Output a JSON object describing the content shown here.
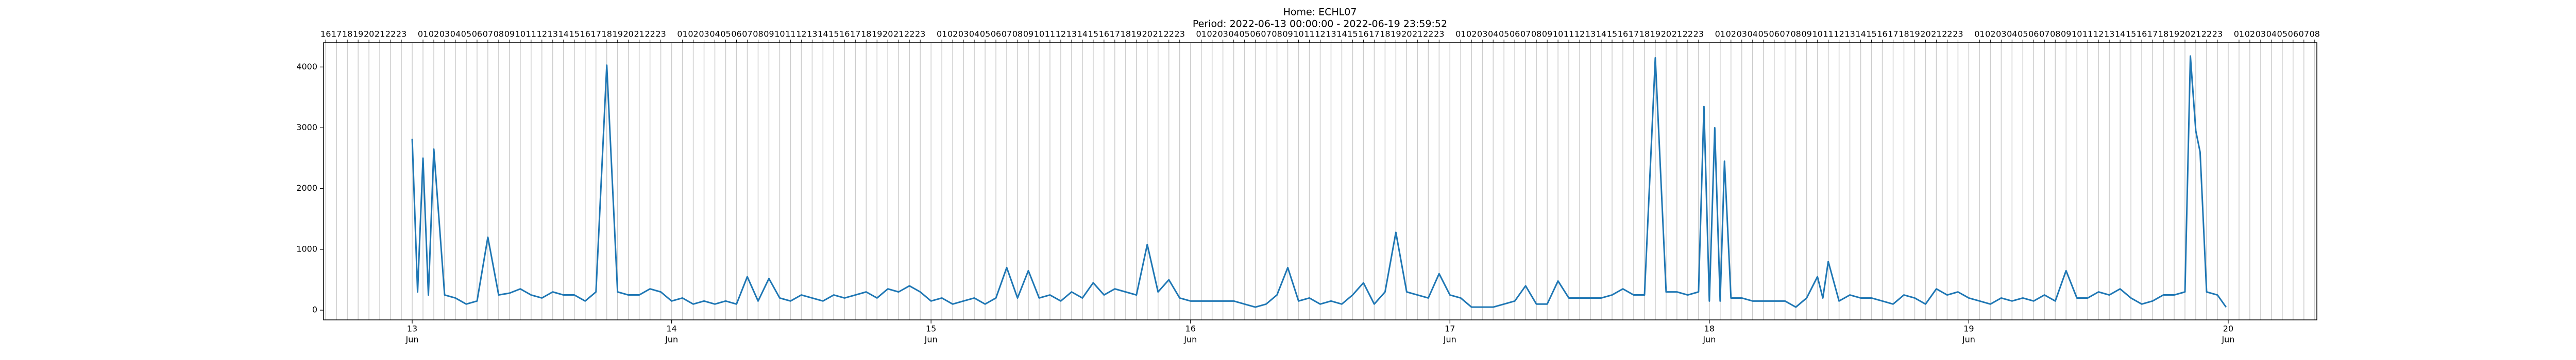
{
  "chart_data": {
    "type": "line",
    "title": "Home: ECHL07",
    "subtitle": "Period: 2022-06-13 00:00:00 - 2022-06-19 23:59:52",
    "color": "#1f77b4",
    "grid": true,
    "xlim": [
      -8.2,
      176.2
    ],
    "ylim": [
      -160,
      4400
    ],
    "yticks": [
      0,
      1000,
      2000,
      3000,
      4000
    ],
    "xticks": [
      {
        "value": 0,
        "label": "13",
        "sublabel": "Jun"
      },
      {
        "value": 24,
        "label": "14",
        "sublabel": "Jun"
      },
      {
        "value": 48,
        "label": "15",
        "sublabel": "Jun"
      },
      {
        "value": 72,
        "label": "16",
        "sublabel": "Jun"
      },
      {
        "value": 96,
        "label": "17",
        "sublabel": "Jun"
      },
      {
        "value": 120,
        "label": "18",
        "sublabel": "Jun"
      },
      {
        "value": 144,
        "label": "19",
        "sublabel": "Jun"
      },
      {
        "value": 168,
        "label": "20",
        "sublabel": "Jun"
      }
    ],
    "x2ticks": [
      {
        "value": -8,
        "label": "16"
      },
      {
        "value": -7,
        "label": "17"
      },
      {
        "value": -6,
        "label": "18"
      },
      {
        "value": -5,
        "label": "19"
      },
      {
        "value": -4,
        "label": "20"
      },
      {
        "value": -3,
        "label": "21"
      },
      {
        "value": -2,
        "label": "22"
      },
      {
        "value": -1,
        "label": "23"
      },
      {
        "value": 1,
        "label": "01"
      },
      {
        "value": 2,
        "label": "02"
      },
      {
        "value": 3,
        "label": "03"
      },
      {
        "value": 4,
        "label": "04"
      },
      {
        "value": 5,
        "label": "05"
      },
      {
        "value": 6,
        "label": "06"
      },
      {
        "value": 7,
        "label": "07"
      },
      {
        "value": 8,
        "label": "08"
      },
      {
        "value": 9,
        "label": "09"
      },
      {
        "value": 10,
        "label": "10"
      },
      {
        "value": 11,
        "label": "11"
      },
      {
        "value": 12,
        "label": "12"
      },
      {
        "value": 13,
        "label": "13"
      },
      {
        "value": 14,
        "label": "14"
      },
      {
        "value": 15,
        "label": "15"
      },
      {
        "value": 16,
        "label": "16"
      },
      {
        "value": 17,
        "label": "17"
      },
      {
        "value": 18,
        "label": "18"
      },
      {
        "value": 19,
        "label": "19"
      },
      {
        "value": 20,
        "label": "20"
      },
      {
        "value": 21,
        "label": "21"
      },
      {
        "value": 22,
        "label": "22"
      },
      {
        "value": 23,
        "label": "23"
      },
      {
        "value": 25,
        "label": "01"
      },
      {
        "value": 26,
        "label": "02"
      },
      {
        "value": 27,
        "label": "03"
      },
      {
        "value": 28,
        "label": "04"
      },
      {
        "value": 29,
        "label": "05"
      },
      {
        "value": 30,
        "label": "06"
      },
      {
        "value": 31,
        "label": "07"
      },
      {
        "value": 32,
        "label": "08"
      },
      {
        "value": 33,
        "label": "09"
      },
      {
        "value": 34,
        "label": "10"
      },
      {
        "value": 35,
        "label": "11"
      },
      {
        "value": 36,
        "label": "12"
      },
      {
        "value": 37,
        "label": "13"
      },
      {
        "value": 38,
        "label": "14"
      },
      {
        "value": 39,
        "label": "15"
      },
      {
        "value": 40,
        "label": "16"
      },
      {
        "value": 41,
        "label": "17"
      },
      {
        "value": 42,
        "label": "18"
      },
      {
        "value": 43,
        "label": "19"
      },
      {
        "value": 44,
        "label": "20"
      },
      {
        "value": 45,
        "label": "21"
      },
      {
        "value": 46,
        "label": "22"
      },
      {
        "value": 47,
        "label": "23"
      },
      {
        "value": 49,
        "label": "01"
      },
      {
        "value": 50,
        "label": "02"
      },
      {
        "value": 51,
        "label": "03"
      },
      {
        "value": 52,
        "label": "04"
      },
      {
        "value": 53,
        "label": "05"
      },
      {
        "value": 54,
        "label": "06"
      },
      {
        "value": 55,
        "label": "07"
      },
      {
        "value": 56,
        "label": "08"
      },
      {
        "value": 57,
        "label": "09"
      },
      {
        "value": 58,
        "label": "10"
      },
      {
        "value": 59,
        "label": "11"
      },
      {
        "value": 60,
        "label": "12"
      },
      {
        "value": 61,
        "label": "13"
      },
      {
        "value": 62,
        "label": "14"
      },
      {
        "value": 63,
        "label": "15"
      },
      {
        "value": 64,
        "label": "16"
      },
      {
        "value": 65,
        "label": "17"
      },
      {
        "value": 66,
        "label": "18"
      },
      {
        "value": 67,
        "label": "19"
      },
      {
        "value": 68,
        "label": "20"
      },
      {
        "value": 69,
        "label": "21"
      },
      {
        "value": 70,
        "label": "22"
      },
      {
        "value": 71,
        "label": "23"
      },
      {
        "value": 73,
        "label": "01"
      },
      {
        "value": 74,
        "label": "02"
      },
      {
        "value": 75,
        "label": "03"
      },
      {
        "value": 76,
        "label": "04"
      },
      {
        "value": 77,
        "label": "05"
      },
      {
        "value": 78,
        "label": "06"
      },
      {
        "value": 79,
        "label": "07"
      },
      {
        "value": 80,
        "label": "08"
      },
      {
        "value": 81,
        "label": "09"
      },
      {
        "value": 82,
        "label": "10"
      },
      {
        "value": 83,
        "label": "11"
      },
      {
        "value": 84,
        "label": "12"
      },
      {
        "value": 85,
        "label": "13"
      },
      {
        "value": 86,
        "label": "14"
      },
      {
        "value": 87,
        "label": "15"
      },
      {
        "value": 88,
        "label": "16"
      },
      {
        "value": 89,
        "label": "17"
      },
      {
        "value": 90,
        "label": "18"
      },
      {
        "value": 91,
        "label": "19"
      },
      {
        "value": 92,
        "label": "20"
      },
      {
        "value": 93,
        "label": "21"
      },
      {
        "value": 94,
        "label": "22"
      },
      {
        "value": 95,
        "label": "23"
      },
      {
        "value": 97,
        "label": "01"
      },
      {
        "value": 98,
        "label": "02"
      },
      {
        "value": 99,
        "label": "03"
      },
      {
        "value": 100,
        "label": "04"
      },
      {
        "value": 101,
        "label": "05"
      },
      {
        "value": 102,
        "label": "06"
      },
      {
        "value": 103,
        "label": "07"
      },
      {
        "value": 104,
        "label": "08"
      },
      {
        "value": 105,
        "label": "09"
      },
      {
        "value": 106,
        "label": "10"
      },
      {
        "value": 107,
        "label": "11"
      },
      {
        "value": 108,
        "label": "12"
      },
      {
        "value": 109,
        "label": "13"
      },
      {
        "value": 110,
        "label": "14"
      },
      {
        "value": 111,
        "label": "15"
      },
      {
        "value": 112,
        "label": "16"
      },
      {
        "value": 113,
        "label": "17"
      },
      {
        "value": 114,
        "label": "18"
      },
      {
        "value": 115,
        "label": "19"
      },
      {
        "value": 116,
        "label": "20"
      },
      {
        "value": 117,
        "label": "21"
      },
      {
        "value": 118,
        "label": "22"
      },
      {
        "value": 119,
        "label": "23"
      },
      {
        "value": 121,
        "label": "01"
      },
      {
        "value": 122,
        "label": "02"
      },
      {
        "value": 123,
        "label": "03"
      },
      {
        "value": 124,
        "label": "04"
      },
      {
        "value": 125,
        "label": "05"
      },
      {
        "value": 126,
        "label": "06"
      },
      {
        "value": 127,
        "label": "07"
      },
      {
        "value": 128,
        "label": "08"
      },
      {
        "value": 129,
        "label": "09"
      },
      {
        "value": 130,
        "label": "10"
      },
      {
        "value": 131,
        "label": "11"
      },
      {
        "value": 132,
        "label": "12"
      },
      {
        "value": 133,
        "label": "13"
      },
      {
        "value": 134,
        "label": "14"
      },
      {
        "value": 135,
        "label": "15"
      },
      {
        "value": 136,
        "label": "16"
      },
      {
        "value": 137,
        "label": "17"
      },
      {
        "value": 138,
        "label": "18"
      },
      {
        "value": 139,
        "label": "19"
      },
      {
        "value": 140,
        "label": "20"
      },
      {
        "value": 141,
        "label": "21"
      },
      {
        "value": 142,
        "label": "22"
      },
      {
        "value": 143,
        "label": "23"
      },
      {
        "value": 145,
        "label": "01"
      },
      {
        "value": 146,
        "label": "02"
      },
      {
        "value": 147,
        "label": "03"
      },
      {
        "value": 148,
        "label": "04"
      },
      {
        "value": 149,
        "label": "05"
      },
      {
        "value": 150,
        "label": "06"
      },
      {
        "value": 151,
        "label": "07"
      },
      {
        "value": 152,
        "label": "08"
      },
      {
        "value": 153,
        "label": "09"
      },
      {
        "value": 154,
        "label": "10"
      },
      {
        "value": 155,
        "label": "11"
      },
      {
        "value": 156,
        "label": "12"
      },
      {
        "value": 157,
        "label": "13"
      },
      {
        "value": 158,
        "label": "14"
      },
      {
        "value": 159,
        "label": "15"
      },
      {
        "value": 160,
        "label": "16"
      },
      {
        "value": 161,
        "label": "17"
      },
      {
        "value": 162,
        "label": "18"
      },
      {
        "value": 163,
        "label": "19"
      },
      {
        "value": 164,
        "label": "20"
      },
      {
        "value": 165,
        "label": "21"
      },
      {
        "value": 166,
        "label": "22"
      },
      {
        "value": 167,
        "label": "23"
      },
      {
        "value": 169,
        "label": "01"
      },
      {
        "value": 170,
        "label": "02"
      },
      {
        "value": 171,
        "label": "03"
      },
      {
        "value": 172,
        "label": "04"
      },
      {
        "value": 173,
        "label": "05"
      },
      {
        "value": 174,
        "label": "06"
      },
      {
        "value": 175,
        "label": "07"
      },
      {
        "value": 176,
        "label": "08"
      }
    ],
    "x": [
      0,
      0.5,
      1,
      1.5,
      2,
      3,
      4,
      5,
      6,
      7,
      8,
      9,
      10,
      11,
      12,
      13,
      14,
      15,
      16,
      17,
      18,
      19,
      20,
      21,
      22,
      23,
      24,
      25,
      26,
      27,
      28,
      29,
      30,
      31,
      32,
      33,
      34,
      35,
      36,
      37,
      38,
      39,
      40,
      41,
      42,
      43,
      44,
      45,
      46,
      47,
      48,
      49,
      50,
      51,
      52,
      53,
      54,
      55,
      56,
      57,
      58,
      59,
      60,
      61,
      62,
      63,
      64,
      65,
      66,
      67,
      68,
      69,
      70,
      71,
      72,
      73,
      74,
      75,
      76,
      77,
      78,
      79,
      80,
      81,
      82,
      83,
      84,
      85,
      86,
      87,
      88,
      89,
      90,
      91,
      92,
      93,
      94,
      95,
      96,
      97,
      98,
      99,
      100,
      101,
      102,
      103,
      104,
      105,
      106,
      107,
      108,
      109,
      110,
      111,
      112,
      113,
      114,
      115,
      116,
      117,
      118,
      119,
      119.5,
      120,
      120.5,
      121,
      121.4,
      122,
      123,
      124,
      125,
      126,
      127,
      128,
      129,
      130,
      130.5,
      131,
      132,
      133,
      134,
      135,
      136,
      137,
      138,
      139,
      140,
      141,
      142,
      143,
      144,
      145,
      146,
      147,
      148,
      149,
      150,
      151,
      152,
      153,
      154,
      155,
      156,
      157,
      158,
      159,
      160,
      161,
      162,
      163,
      164,
      164.5,
      165,
      165.4,
      166,
      167,
      167.8
    ],
    "values": [
      2820,
      300,
      2500,
      250,
      2650,
      250,
      200,
      100,
      150,
      1200,
      250,
      280,
      350,
      250,
      200,
      300,
      250,
      250,
      150,
      300,
      4030,
      300,
      250,
      250,
      350,
      300,
      150,
      200,
      100,
      150,
      100,
      150,
      100,
      550,
      150,
      520,
      200,
      150,
      250,
      200,
      150,
      250,
      200,
      250,
      300,
      200,
      350,
      300,
      400,
      300,
      150,
      200,
      100,
      150,
      200,
      100,
      200,
      700,
      200,
      650,
      200,
      250,
      150,
      300,
      200,
      450,
      250,
      350,
      300,
      250,
      1080,
      300,
      500,
      200,
      150,
      150,
      150,
      150,
      150,
      100,
      50,
      100,
      250,
      700,
      150,
      200,
      100,
      150,
      100,
      250,
      450,
      100,
      300,
      1280,
      300,
      250,
      200,
      600,
      250,
      200,
      50,
      50,
      50,
      100,
      150,
      400,
      100,
      100,
      480,
      200,
      200,
      200,
      200,
      250,
      350,
      250,
      250,
      4150,
      300,
      300,
      250,
      300,
      3350,
      150,
      3000,
      150,
      2450,
      200,
      200,
      150,
      150,
      150,
      150,
      50,
      200,
      550,
      200,
      800,
      150,
      250,
      200,
      200,
      150,
      100,
      250,
      200,
      100,
      350,
      250,
      300,
      200,
      150,
      100,
      200,
      150,
      200,
      150,
      250,
      150,
      650,
      200,
      200,
      300,
      250,
      350,
      200,
      100,
      150,
      250,
      250,
      300,
      4180,
      2950,
      2600,
      300,
      250,
      50
    ]
  }
}
